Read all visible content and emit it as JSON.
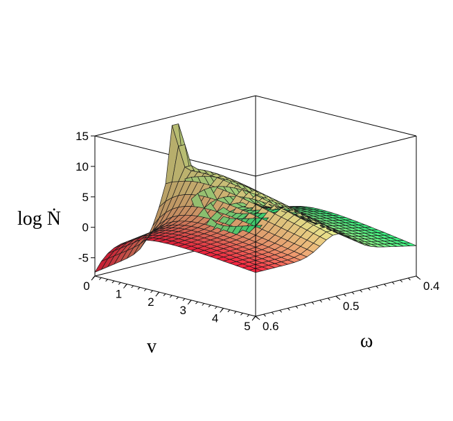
{
  "chart_data": {
    "type": "surface3d",
    "zlabel": "log Ṅ",
    "xlabel": "v",
    "ylabel": "ω",
    "x_range": [
      0,
      5
    ],
    "y_range": [
      0.4,
      0.6
    ],
    "z_range": [
      -8,
      15
    ],
    "x_ticks": [
      "0",
      "1",
      "2",
      "3",
      "4",
      "5"
    ],
    "y_ticks": [
      "0.4",
      "0.5",
      "0.6"
    ],
    "z_ticks": [
      "15",
      "10",
      "5",
      "0",
      "-5"
    ],
    "grid_lines": 25,
    "colormap": [
      "#ff2040",
      "#e8ee90",
      "#3aff88"
    ],
    "peak": {
      "v": 0,
      "omega": 0.5,
      "log_n": 13.5
    },
    "floor_value_at_v0": -7
  }
}
